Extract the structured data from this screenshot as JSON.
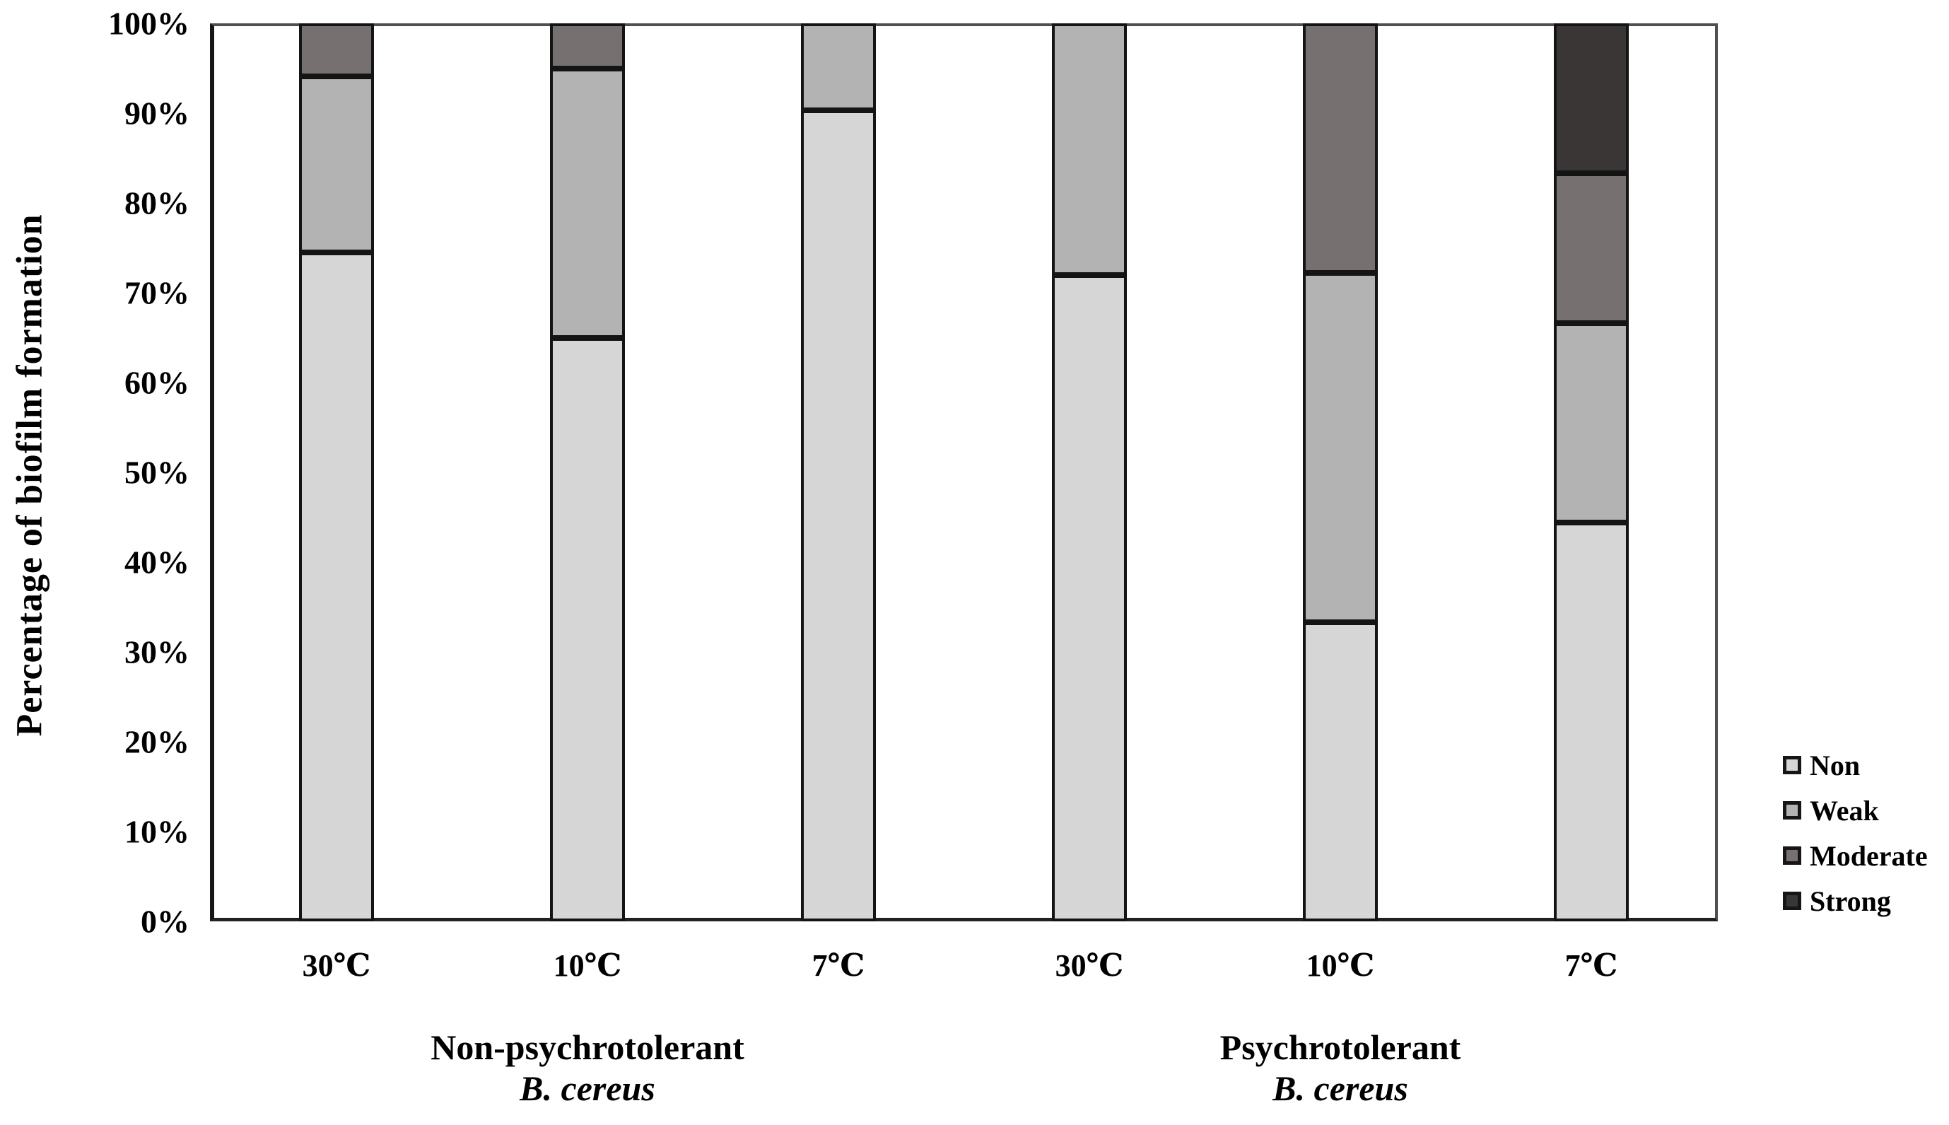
{
  "chart_data": {
    "type": "bar",
    "variant": "stacked-100-percent-column",
    "title": "",
    "ylabel": "Percentage of biofilm formation",
    "xlabel": "",
    "ylim": [
      0,
      100
    ],
    "grid": false,
    "yticks": [
      "0%",
      "10%",
      "20%",
      "30%",
      "40%",
      "50%",
      "60%",
      "70%",
      "80%",
      "90%",
      "100%"
    ],
    "categories": [
      "30℃",
      "10℃",
      "7℃",
      "30℃",
      "10℃",
      "7℃"
    ],
    "groups": [
      {
        "label_line1": "Non-psychrotolerant",
        "label_line2": "B. cereus",
        "category_indices": [
          0,
          1,
          2
        ]
      },
      {
        "label_line1": "Psychrotolerant",
        "label_line2": "B. cereus",
        "category_indices": [
          3,
          4,
          5
        ]
      }
    ],
    "series": [
      {
        "name": "Non",
        "color": "#d6d6d6",
        "values": [
          74.5,
          65.0,
          90.3,
          72.0,
          33.3,
          44.4
        ]
      },
      {
        "name": "Weak",
        "color": "#b3b3b3",
        "values": [
          19.6,
          30.0,
          9.7,
          28.0,
          38.9,
          22.2
        ]
      },
      {
        "name": "Moderate",
        "color": "#767070",
        "values": [
          5.9,
          5.0,
          0.0,
          0.0,
          27.8,
          16.7
        ]
      },
      {
        "name": "Strong",
        "color": "#3a3636",
        "values": [
          0.0,
          0.0,
          0.0,
          0.0,
          0.0,
          16.7
        ]
      }
    ],
    "legend": {
      "position": "right",
      "entries": [
        "Non",
        "Weak",
        "Moderate",
        "Strong"
      ]
    },
    "axis_color": "#212121",
    "bar_border_color": "#141414",
    "text_color": "#000000"
  }
}
